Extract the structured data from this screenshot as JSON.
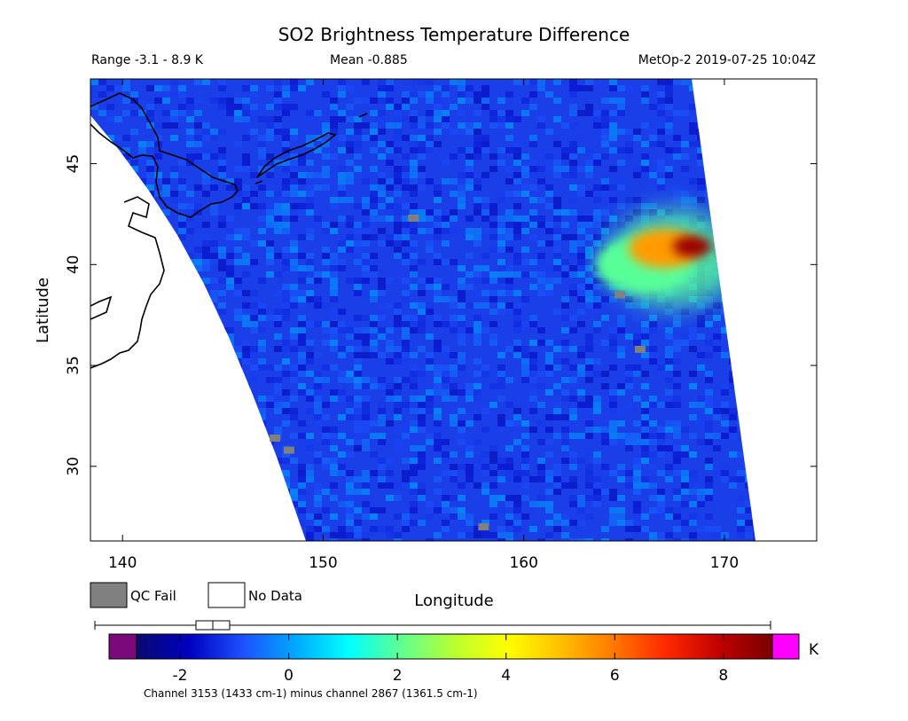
{
  "header": {
    "title": "SO2 Brightness Temperature Difference",
    "range": "Range -3.1 - 8.9 K",
    "mean": "Mean -0.885",
    "satellite_time": "MetOp-2 2019-07-25 10:04Z"
  },
  "legend": {
    "qc_fail": "QC Fail",
    "no_data": "No Data",
    "qc_fail_color": "#808080",
    "no_data_color": "#ffffff"
  },
  "colorbar": {
    "unit": "K",
    "footer": "Channel 3153 (1433 cm-1) minus channel 2867 (1361.5 cm-1)",
    "vmin": -2.8,
    "vmax": 8.9,
    "ticks": [
      "-2",
      "0",
      "2",
      "4",
      "6",
      "8"
    ],
    "tick_values": [
      -2,
      0,
      2,
      4,
      6,
      8
    ],
    "under_color": "#7a0a7a",
    "over_color": "#ff00ff",
    "stops": [
      "#0a0a6e",
      "#0000c0",
      "#1e50ff",
      "#00a8ff",
      "#00ffff",
      "#60ff90",
      "#b8ff30",
      "#ffff00",
      "#ffc000",
      "#ff7800",
      "#ff2800",
      "#c00000",
      "#7a0000"
    ]
  },
  "chart_data": {
    "type": "heatmap",
    "title": "SO2 Brightness Temperature Difference",
    "xlabel": "Longitude",
    "ylabel": "Latitude",
    "xlim": [
      138.4,
      174.6
    ],
    "ylim": [
      26.3,
      49.2
    ],
    "xticks": [
      140,
      150,
      160,
      170
    ],
    "yticks": [
      30,
      35,
      40,
      45
    ],
    "value_range": [
      -3.1,
      8.9
    ],
    "mean": -0.885,
    "background_value": -0.9,
    "hotspots": [
      {
        "lon": 168.4,
        "lat": 40.9,
        "value": 8.5
      },
      {
        "lon": 167.0,
        "lat": 40.8,
        "value": 5.5
      },
      {
        "lon": 166.0,
        "lat": 40.0,
        "value": 2.0
      }
    ],
    "qc_fail_points": [
      {
        "lon": 147.6,
        "lat": 31.4
      },
      {
        "lon": 148.3,
        "lat": 30.8
      },
      {
        "lon": 165.8,
        "lat": 35.8
      },
      {
        "lon": 164.8,
        "lat": 38.5
      },
      {
        "lon": 154.5,
        "lat": 42.3
      },
      {
        "lon": 158.0,
        "lat": 27.0
      }
    ]
  }
}
